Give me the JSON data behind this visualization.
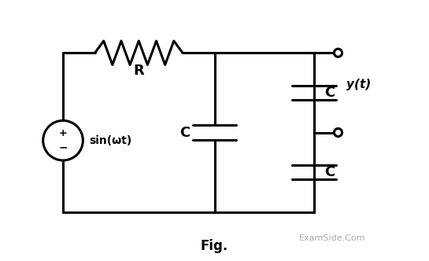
{
  "bg_color": "#ffffff",
  "line_color": "#000000",
  "line_width": 2.2,
  "fig_label": "Fig.",
  "watermark": "ExamSide.Com",
  "resistor_label": "R",
  "cap_label": "C",
  "source_label": "sin(ωt)",
  "output_label": "y(t)"
}
